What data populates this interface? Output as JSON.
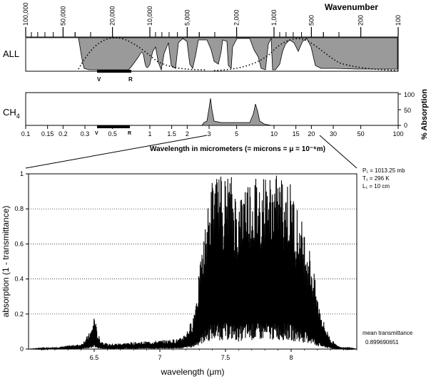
{
  "header": {
    "wavenumber_title": "Wavenumber",
    "wavenumber_ticks": [
      "100,000",
      "50,000",
      "20,000",
      "10,000",
      "5,000",
      "2,000",
      "1,000",
      "500",
      "200",
      "100"
    ]
  },
  "panels": {
    "all_label": "ALL",
    "ch4_label": "CH",
    "ch4_sub": "4",
    "visible_v": "V",
    "visible_r": "R",
    "pct_absorption": "% Absorption",
    "pct_ticks": [
      "100",
      "50",
      "0"
    ]
  },
  "micron_axis": {
    "ticks": [
      "0.1",
      "0.15",
      "0.2",
      "0.3",
      "0.5",
      "1",
      "1.5",
      "2",
      "3",
      "5",
      "10",
      "15",
      "20",
      "30",
      "50",
      "100"
    ],
    "title": "Wavelength in micrometers (= microns = μ = 10⁻⁶m)"
  },
  "params": {
    "p1": "P₁ = 1013.25 mb",
    "t1": "T₁ = 296 K",
    "l1": "L₁ = 10 cm"
  },
  "mean_transmittance": {
    "label": "mean transmittance",
    "value": "0.899690651"
  },
  "chart_data": {
    "type": "line",
    "title": "",
    "xlabel": "wavelength (μm)",
    "ylabel": "absorption (1 - transmittance)",
    "xlim": [
      6.0,
      8.5
    ],
    "ylim": [
      0,
      1
    ],
    "xticks": [
      "6.5",
      "7",
      "7.5",
      "8"
    ],
    "yticks": [
      "0",
      "0.2",
      "0.4",
      "0.6",
      "0.8",
      "1"
    ],
    "grid": "horizontal dotted",
    "series": [
      {
        "x": [
          6.0,
          6.2,
          6.4,
          6.45,
          6.48,
          6.5,
          6.52,
          6.55,
          6.6,
          6.8,
          7.0,
          7.15,
          7.2,
          7.25,
          7.3,
          7.35,
          7.4,
          7.45,
          7.5,
          7.55,
          7.6,
          7.65,
          7.7,
          7.75,
          7.8,
          7.85,
          7.9,
          7.95,
          8.0,
          8.05,
          8.1,
          8.15,
          8.2,
          8.25,
          8.3,
          8.35,
          8.4,
          8.5
        ],
        "y": [
          0.0,
          0.01,
          0.03,
          0.08,
          0.12,
          0.21,
          0.1,
          0.05,
          0.03,
          0.04,
          0.05,
          0.06,
          0.1,
          0.18,
          0.45,
          0.75,
          1.0,
          1.0,
          1.0,
          1.0,
          0.85,
          1.0,
          1.0,
          1.0,
          1.0,
          1.0,
          1.0,
          1.0,
          0.95,
          0.8,
          0.7,
          0.55,
          0.3,
          0.15,
          0.06,
          0.02,
          0.01,
          0.0
        ]
      }
    ]
  }
}
